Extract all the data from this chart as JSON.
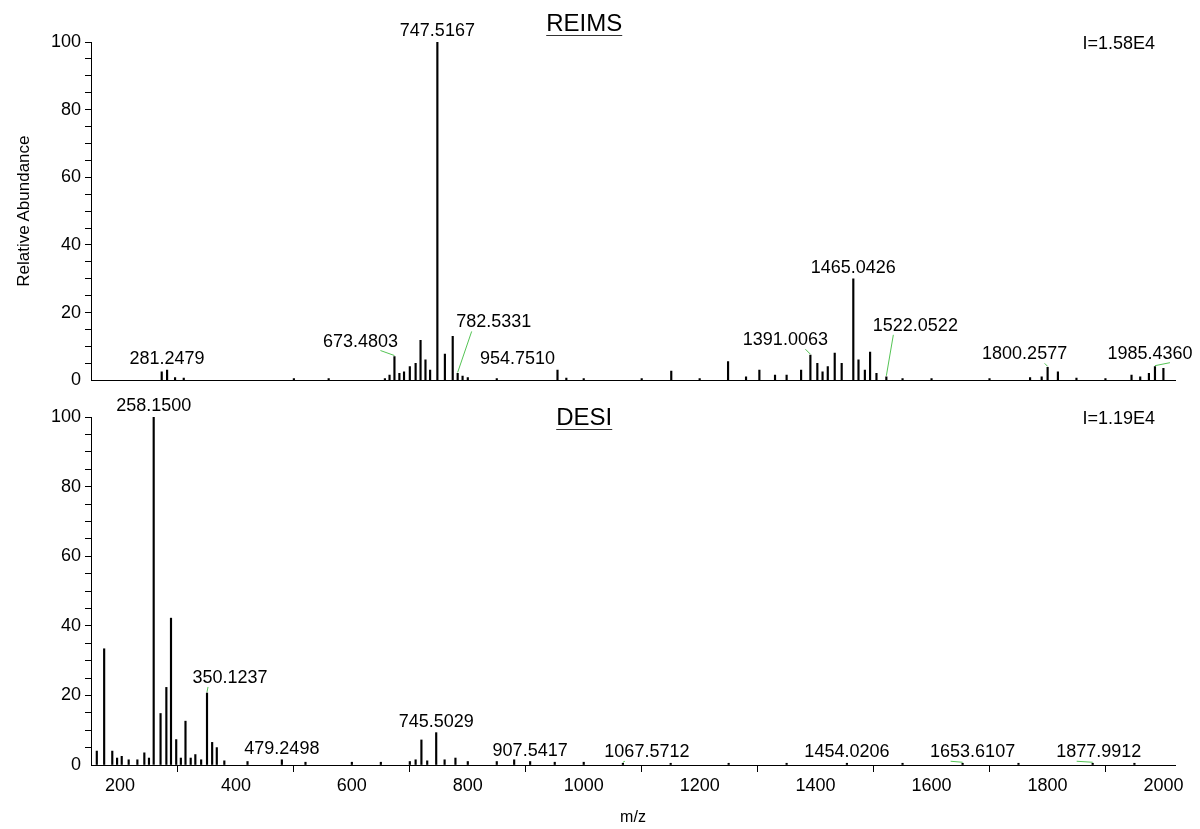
{
  "chart_data": [
    {
      "type": "bar",
      "title": "REIMS",
      "ylabel": "Relative Abundance",
      "xlim": [
        150,
        2020
      ],
      "ylim": [
        0,
        100
      ],
      "xticks": [
        200,
        400,
        600,
        800,
        1000,
        1200,
        1400,
        1600,
        1800,
        2000
      ],
      "yticks": [
        0,
        {
          "value": 5,
          "label": null
        },
        {
          "value": 10,
          "label": null
        },
        {
          "value": 15,
          "label": null
        },
        20,
        {
          "value": 25,
          "label": null
        },
        {
          "value": 30,
          "label": null
        },
        {
          "value": 35,
          "label": null
        },
        40,
        {
          "value": 45,
          "label": null
        },
        {
          "value": 50,
          "label": null
        },
        {
          "value": 55,
          "label": null
        },
        60,
        {
          "value": 65,
          "label": null
        },
        {
          "value": 70,
          "label": null
        },
        {
          "value": 75,
          "label": null
        },
        80,
        {
          "value": 85,
          "label": null
        },
        {
          "value": 90,
          "label": null
        },
        {
          "value": 95,
          "label": null
        },
        100
      ],
      "tick_labels": "y",
      "grid": false,
      "legend": false,
      "series": [
        {
          "color": "#000000",
          "x": [
            272,
            281.2479,
            295,
            310,
            500,
            560,
            657,
            665,
            673.4803,
            682,
            690,
            700,
            710,
            718.5,
            727,
            735,
            747.5167,
            760.5,
            774,
            782.5331,
            791,
            800,
            850,
            954.751,
            970,
            1000,
            1100,
            1151,
            1200,
            1249,
            1280,
            1303,
            1330,
            1350,
            1375,
            1391.0063,
            1403,
            1412,
            1421,
            1433,
            1445,
            1465.0426,
            1474,
            1485,
            1494,
            1505,
            1522.0522,
            1550,
            1600,
            1700,
            1770,
            1790,
            1800.2577,
            1818,
            1850,
            1900,
            1945,
            1960,
            1975,
            1985.436,
            2000
          ],
          "values": [
            2.5,
            3,
            0.8,
            0.6,
            0.5,
            0.5,
            0.5,
            1.5,
            7,
            2,
            2.5,
            4,
            5,
            11.8,
            6,
            3,
            100,
            7.7,
            13,
            2,
            1.2,
            0.8,
            0.5,
            3,
            0.6,
            0.5,
            0.5,
            2.7,
            0.5,
            5.5,
            1,
            3,
            1.5,
            1.5,
            3,
            7.4,
            5,
            2.5,
            4,
            8,
            5,
            30,
            6,
            3,
            8.3,
            2,
            1,
            0.5,
            0.5,
            0.5,
            0.8,
            1,
            3.8,
            2.5,
            0.6,
            0.5,
            1.5,
            1,
            2,
            4,
            3.5
          ]
        }
      ],
      "annotations": [
        "I=1.58E4",
        {
          "text": "281.2479",
          "x": 281.2479,
          "y": 3
        },
        {
          "text": "673.4803",
          "x": 673.4803,
          "y": 7
        },
        {
          "text": "747.5167",
          "x": 747.5167,
          "y": 100
        },
        {
          "text": "782.5331",
          "x": 782.5331,
          "y": 2
        },
        {
          "text": "954.7510",
          "x": 954.751,
          "y": 3
        },
        {
          "text": "1391.0063",
          "x": 1391.0063,
          "y": 7.4
        },
        {
          "text": "1465.0426",
          "x": 1465.0426,
          "y": 30
        },
        {
          "text": "1522.0522",
          "x": 1522.0522,
          "y": 1
        },
        {
          "text": "1800.2577",
          "x": 1800.2577,
          "y": 3.8
        },
        {
          "text": "1985.4360",
          "x": 1985.436,
          "y": 4
        }
      ]
    },
    {
      "type": "bar",
      "title": "DESI",
      "xlabel": "m/z",
      "xlim": [
        150,
        2020
      ],
      "ylim": [
        0,
        100
      ],
      "xticks": [
        200,
        400,
        600,
        800,
        1000,
        1200,
        1400,
        1600,
        1800,
        2000
      ],
      "yticks": [
        0,
        {
          "value": 5,
          "label": null
        },
        {
          "value": 10,
          "label": null
        },
        {
          "value": 15,
          "label": null
        },
        20,
        {
          "value": 25,
          "label": null
        },
        {
          "value": 30,
          "label": null
        },
        {
          "value": 35,
          "label": null
        },
        40,
        {
          "value": 45,
          "label": null
        },
        {
          "value": 50,
          "label": null
        },
        {
          "value": 55,
          "label": null
        },
        60,
        {
          "value": 65,
          "label": null
        },
        {
          "value": 70,
          "label": null
        },
        {
          "value": 75,
          "label": null
        },
        80,
        {
          "value": 85,
          "label": null
        },
        {
          "value": 90,
          "label": null
        },
        {
          "value": 95,
          "label": null
        },
        100
      ],
      "grid": false,
      "legend": false,
      "series": [
        {
          "color": "#000000",
          "x": [
            160,
            172.7,
            186.7,
            195,
            203,
            215,
            230,
            242,
            250,
            258.15,
            270,
            280,
            288,
            297,
            305,
            313,
            322,
            330,
            340,
            350.1237,
            359,
            367,
            380,
            420,
            479.2498,
            520,
            600,
            650,
            700,
            710,
            720,
            730,
            745.5029,
            760,
            778.7,
            800,
            850,
            880,
            907.5417,
            950,
            1000,
            1067.5712,
            1150,
            1250,
            1350,
            1454.0206,
            1550,
            1653.6107,
            1750,
            1877.9912,
            1950
          ],
          "values": [
            4,
            33.4,
            4,
            2,
            2.5,
            1.5,
            1.5,
            3.5,
            2,
            100,
            14.8,
            22.3,
            42.2,
            7.3,
            2,
            12.6,
            2,
            3,
            1.5,
            20.7,
            6.5,
            5,
            1.2,
            1,
            1.5,
            0.8,
            0.8,
            0.8,
            1,
            1.5,
            7.2,
            1.2,
            9.3,
            1.5,
            2,
            1,
            1,
            1.5,
            1,
            0.8,
            0.8,
            0.5,
            0.5,
            0.5,
            0.5,
            0.5,
            0.5,
            0.5,
            0.5,
            0.5,
            0.5
          ]
        }
      ],
      "annotations": [
        "I=1.19E4",
        {
          "text": "258.1500",
          "x": 258.15,
          "y": 100
        },
        {
          "text": "350.1237",
          "x": 350.1237,
          "y": 20.7
        },
        {
          "text": "479.2498",
          "x": 479.2498,
          "y": 1.5
        },
        {
          "text": "745.5029",
          "x": 745.5029,
          "y": 9.3
        },
        {
          "text": "907.5417",
          "x": 907.5417,
          "y": 1
        },
        {
          "text": "1067.5712",
          "x": 1067.5712,
          "y": 0.5
        },
        {
          "text": "1454.0206",
          "x": 1454.0206,
          "y": 0.5
        },
        {
          "text": "1653.6107",
          "x": 1653.6107,
          "y": 0.5
        },
        {
          "text": "1877.9912",
          "x": 1877.9912,
          "y": 0.5
        }
      ]
    }
  ]
}
